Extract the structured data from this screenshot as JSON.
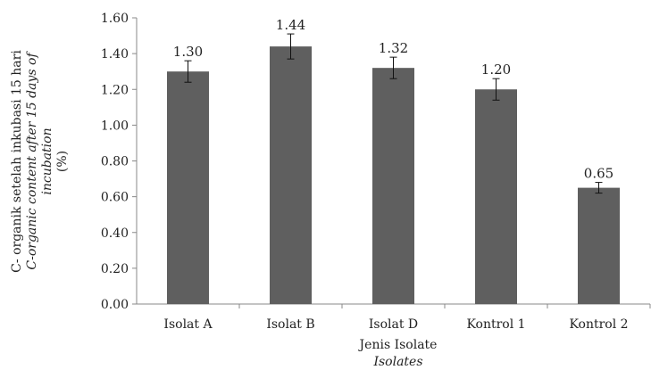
{
  "chart_data": {
    "type": "bar",
    "categories": [
      "Isolat A",
      "Isolat B",
      "Isolat D",
      "Kontrol 1",
      "Kontrol 2"
    ],
    "values": [
      1.3,
      1.44,
      1.32,
      1.2,
      0.65
    ],
    "value_labels": [
      "1.30",
      "1.44",
      "1.32",
      "1.20",
      "0.65"
    ],
    "error": [
      0.06,
      0.07,
      0.06,
      0.06,
      0.03
    ],
    "ylim": [
      0,
      1.6
    ],
    "yticks": [
      "0.00",
      "0.20",
      "0.40",
      "0.60",
      "0.80",
      "1.00",
      "1.20",
      "1.40",
      "1.60"
    ],
    "ylabel_lines": [
      "C- organik setelah inkubasi 15 hari",
      "C-organic content after 15 days of",
      "incubation",
      "(%)"
    ],
    "xlabel": "Jenis Isolate",
    "xlabel_en": "Isolates",
    "bar_color": "#5f5f5f",
    "grid": false,
    "legend": "none"
  }
}
